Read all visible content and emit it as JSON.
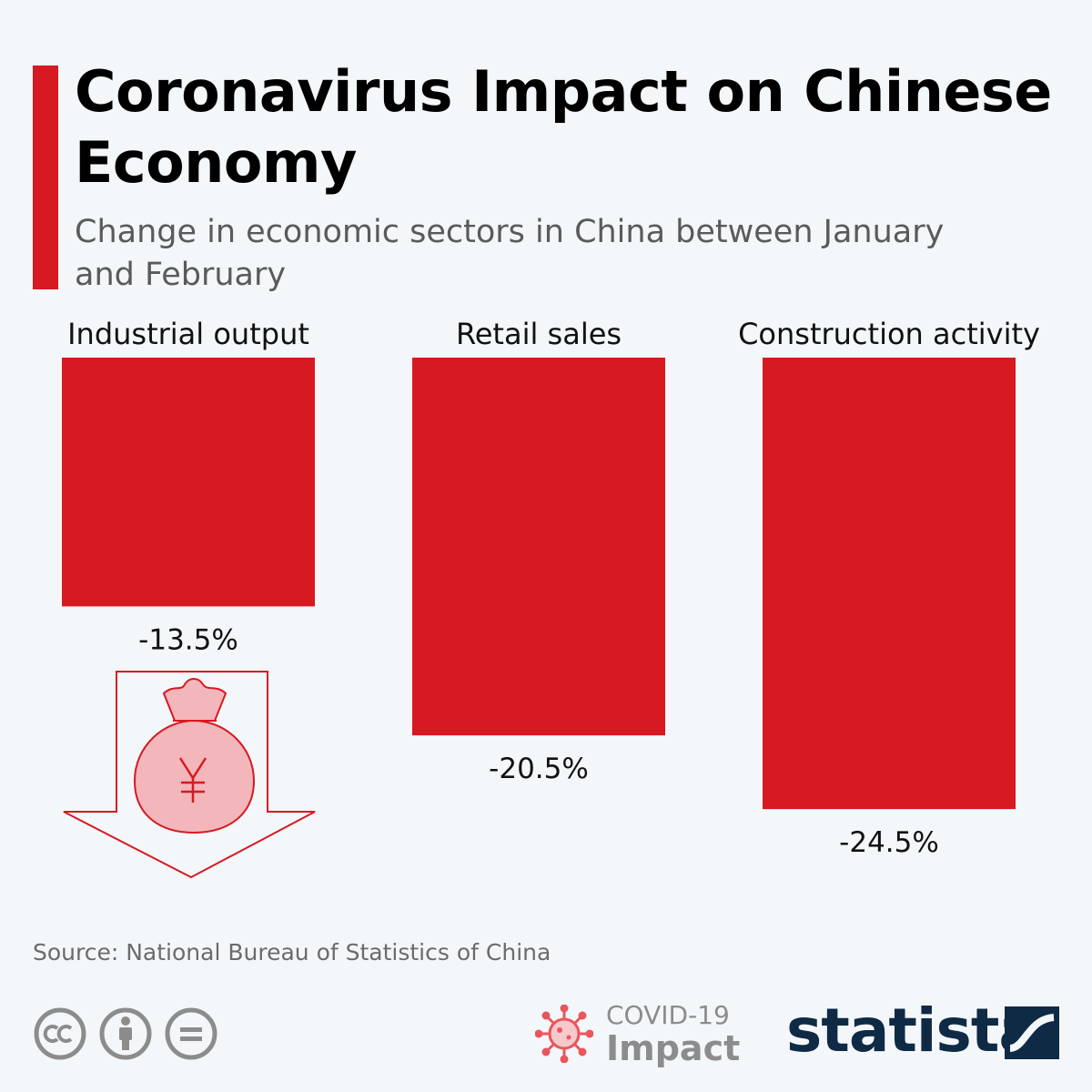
{
  "header": {
    "title": "Coronavirus Impact on Chinese Economy",
    "subtitle": "Change in economic sectors in China between January and February"
  },
  "chart_data": {
    "type": "bar",
    "categories": [
      "Industrial output",
      "Retail sales",
      "Construction activity"
    ],
    "values": [
      -13.5,
      -20.5,
      -24.5
    ],
    "value_labels": [
      "-13.5%",
      "-20.5%",
      "-24.5%"
    ],
    "unit": "%",
    "bar_color": "#d71921",
    "grid": false,
    "legend": "none"
  },
  "footer": {
    "source": "Source: National Bureau of Statistics of China",
    "license_icons": [
      "cc-icon",
      "attribution-icon",
      "no-derivatives-icon"
    ],
    "badge_line1": "COVID-19",
    "badge_line2": "Impact",
    "brand": "statista"
  },
  "colors": {
    "accent": "#d71921",
    "background": "#f4f7fa",
    "brand": "#0f2a45",
    "muted_text": "#5a5a5a"
  }
}
